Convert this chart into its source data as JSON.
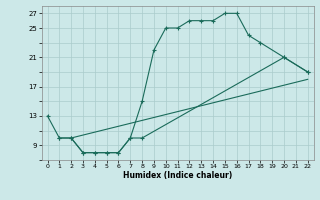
{
  "xlabel": "Humidex (Indice chaleur)",
  "xlim": [
    -0.5,
    22.5
  ],
  "ylim": [
    7,
    28
  ],
  "xticks": [
    0,
    1,
    2,
    3,
    4,
    5,
    6,
    7,
    8,
    9,
    10,
    11,
    12,
    13,
    14,
    15,
    16,
    17,
    18,
    19,
    20,
    21,
    22
  ],
  "yticks": [
    7,
    9,
    11,
    13,
    15,
    17,
    19,
    21,
    23,
    25,
    27
  ],
  "ytick_labels": [
    "",
    "9",
    "",
    "13",
    "",
    "17",
    "",
    "21",
    "",
    "25",
    "27"
  ],
  "bg_color": "#cce8e8",
  "grid_color": "#aacccc",
  "line_color": "#1a6b5a",
  "line1_x": [
    0,
    1,
    2,
    3,
    4,
    5,
    6,
    7,
    8,
    9,
    10,
    11,
    12,
    13,
    14,
    15,
    16,
    17,
    18,
    20,
    22
  ],
  "line1_y": [
    13,
    10,
    10,
    8,
    8,
    8,
    8,
    10,
    15,
    22,
    25,
    25,
    26,
    26,
    26,
    27,
    27,
    24,
    23,
    21,
    19
  ],
  "line2_x": [
    1,
    2,
    3,
    4,
    5,
    6,
    7,
    8,
    20,
    22
  ],
  "line2_y": [
    10,
    10,
    8,
    8,
    8,
    8,
    10,
    10,
    21,
    19
  ],
  "line3_x": [
    2,
    22
  ],
  "line3_y": [
    10,
    18
  ]
}
